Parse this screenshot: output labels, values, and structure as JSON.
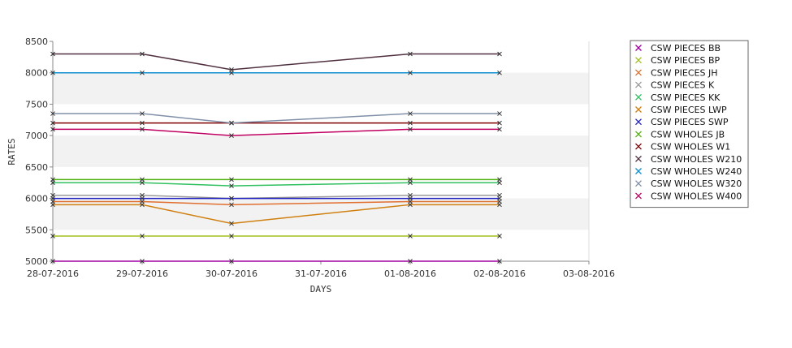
{
  "chart_data": {
    "type": "line",
    "title": "",
    "xlabel": "DAYS",
    "ylabel": "RATES",
    "x_ticks": [
      "28-07-2016",
      "29-07-2016",
      "30-07-2016",
      "31-07-2016",
      "01-08-2016",
      "02-08-2016",
      "03-08-2016"
    ],
    "x": [
      "28-07-2016",
      "29-07-2016",
      "30-07-2016",
      "01-08-2016",
      "02-08-2016"
    ],
    "ylim": [
      5000,
      8500
    ],
    "y_ticks": [
      5000,
      5500,
      6000,
      6500,
      7000,
      7500,
      8000,
      8500
    ],
    "grid": "alternating horizontal bands",
    "legend_position": "right",
    "series": [
      {
        "name": "CSW PIECES BB",
        "color": "#a000a0",
        "values": [
          5000,
          5000,
          5000,
          5000,
          5000
        ]
      },
      {
        "name": "CSW PIECES BP",
        "color": "#a0c020",
        "values": [
          5400,
          5400,
          5400,
          5400,
          5400
        ]
      },
      {
        "name": "CSW PIECES JH",
        "color": "#e07030",
        "values": [
          5950,
          5950,
          5900,
          5950,
          5950
        ]
      },
      {
        "name": "CSW PIECES K",
        "color": "#9a9a9a",
        "values": [
          6050,
          6050,
          6000,
          6050,
          6050
        ]
      },
      {
        "name": "CSW PIECES KK",
        "color": "#30c060",
        "values": [
          6250,
          6250,
          6200,
          6250,
          6250
        ]
      },
      {
        "name": "CSW PIECES LWP",
        "color": "#d08010",
        "values": [
          5900,
          5900,
          5600,
          5900,
          5900
        ]
      },
      {
        "name": "CSW PIECES SWP",
        "color": "#2020c0",
        "values": [
          6000,
          6000,
          6000,
          6000,
          6000
        ]
      },
      {
        "name": "CSW WHOLES JB",
        "color": "#50b010",
        "values": [
          6300,
          6300,
          6300,
          6300,
          6300
        ]
      },
      {
        "name": "CSW WHOLES W1",
        "color": "#800000",
        "values": [
          7200,
          7200,
          7200,
          7200,
          7200
        ]
      },
      {
        "name": "CSW WHOLES W210",
        "color": "#503040",
        "values": [
          8300,
          8300,
          8050,
          8300,
          8300
        ]
      },
      {
        "name": "CSW WHOLES W240",
        "color": "#1090d0",
        "values": [
          8000,
          8000,
          8000,
          8000,
          8000
        ]
      },
      {
        "name": "CSW WHOLES W320",
        "color": "#8090a8",
        "values": [
          7350,
          7350,
          7200,
          7350,
          7350
        ]
      },
      {
        "name": "CSW WHOLES W400",
        "color": "#c00060",
        "values": [
          7100,
          7100,
          7000,
          7100,
          7100
        ]
      }
    ]
  }
}
